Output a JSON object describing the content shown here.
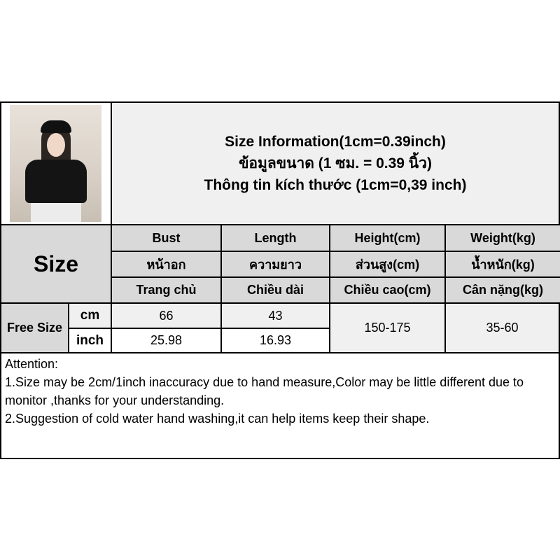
{
  "title": {
    "line1": "Size Information(1cm=0.39inch)",
    "line2": "ข้อมูลขนาด (1 ซม. = 0.39 นิ้ว)",
    "line3": "Thông tin kích thước (1cm=0,39 inch)"
  },
  "size_label": "Size",
  "columns": [
    {
      "en": "Bust",
      "th": "หน้าอก",
      "vi": "Trang chủ"
    },
    {
      "en": "Length",
      "th": "ความยาว",
      "vi": "Chiều dài"
    },
    {
      "en": "Height(cm)",
      "th": "ส่วนสูง(cm)",
      "vi": "Chiều cao(cm)"
    },
    {
      "en": "Weight(kg)",
      "th": "น้ำหนัก(kg)",
      "vi": "Cân nặng(kg)"
    }
  ],
  "row_label": "Free Size",
  "units": [
    "cm",
    "inch"
  ],
  "values": {
    "cm": [
      "66",
      "43"
    ],
    "inch": [
      "25.98",
      "16.93"
    ],
    "height": "150-175",
    "weight": "35-60"
  },
  "attention": {
    "heading": "Attention:",
    "line1": "1.Size may be 2cm/1inch inaccuracy due to hand measure,Color may be little different due to monitor ,thanks for your understanding.",
    "line2": "2.Suggestion of cold water hand washing,it can help items keep their shape."
  }
}
